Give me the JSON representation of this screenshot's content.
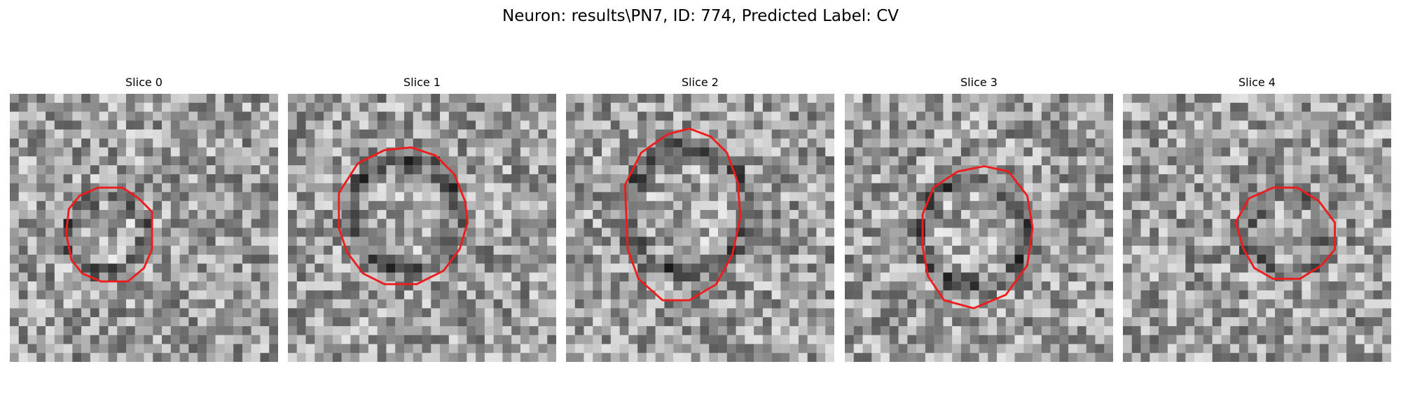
{
  "figure": {
    "title": "Neuron: results\\PN7, ID: 774, Predicted Label: CV",
    "overlay_color": "#ee1c1c",
    "panels": [
      {
        "title": "Slice 0",
        "outline": [
          [
            22,
            43
          ],
          [
            26,
            38
          ],
          [
            33,
            35
          ],
          [
            42,
            35
          ],
          [
            48,
            39
          ],
          [
            53,
            44
          ],
          [
            53,
            58
          ],
          [
            50,
            65
          ],
          [
            44,
            70
          ],
          [
            34,
            70
          ],
          [
            27,
            67
          ],
          [
            23,
            62
          ],
          [
            21,
            52
          ]
        ]
      },
      {
        "title": "Slice 1",
        "outline": [
          [
            19,
            37
          ],
          [
            26,
            26
          ],
          [
            36,
            21
          ],
          [
            46,
            20
          ],
          [
            55,
            23
          ],
          [
            62,
            30
          ],
          [
            66,
            40
          ],
          [
            67,
            48
          ],
          [
            64,
            58
          ],
          [
            58,
            66
          ],
          [
            48,
            71
          ],
          [
            36,
            71
          ],
          [
            28,
            67
          ],
          [
            22,
            59
          ],
          [
            19,
            50
          ]
        ]
      },
      {
        "title": "Slice 2",
        "outline": [
          [
            22,
            34
          ],
          [
            28,
            22
          ],
          [
            38,
            15
          ],
          [
            46,
            13
          ],
          [
            54,
            16
          ],
          [
            60,
            22
          ],
          [
            64,
            33
          ],
          [
            65,
            46
          ],
          [
            62,
            60
          ],
          [
            56,
            71
          ],
          [
            46,
            77
          ],
          [
            36,
            77
          ],
          [
            27,
            69
          ],
          [
            23,
            58
          ]
        ]
      },
      {
        "title": "Slice 3",
        "outline": [
          [
            29,
            45
          ],
          [
            33,
            35
          ],
          [
            42,
            29
          ],
          [
            52,
            27
          ],
          [
            61,
            29
          ],
          [
            68,
            38
          ],
          [
            70,
            50
          ],
          [
            68,
            64
          ],
          [
            60,
            75
          ],
          [
            48,
            80
          ],
          [
            37,
            77
          ],
          [
            31,
            68
          ],
          [
            29,
            57
          ]
        ]
      },
      {
        "title": "Slice 4",
        "outline": [
          [
            42,
            48
          ],
          [
            47,
            39
          ],
          [
            56,
            35
          ],
          [
            65,
            35
          ],
          [
            73,
            40
          ],
          [
            79,
            48
          ],
          [
            79,
            58
          ],
          [
            74,
            64
          ],
          [
            66,
            69
          ],
          [
            56,
            69
          ],
          [
            49,
            65
          ],
          [
            45,
            58
          ]
        ]
      }
    ]
  }
}
